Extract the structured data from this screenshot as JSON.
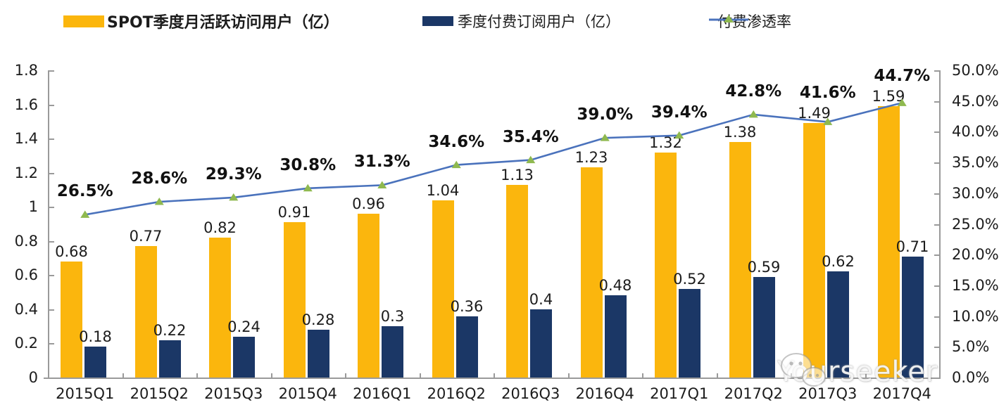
{
  "legend": {
    "mau_label": "SPOT季度月活跃访问用户（亿）",
    "subs_label": "季度付费订阅用户（亿）",
    "penetration_label": "付费渗透率"
  },
  "watermark": {
    "text": "Yourseeker",
    "icon": "wechat-icon"
  },
  "colors": {
    "mau_bar": "#FBB60D",
    "subs_bar": "#1B3766",
    "line": "#4A72BC",
    "marker": "#8FB94F",
    "axis": "#9A9A9A",
    "text": "#1C1C1C"
  },
  "chart_data": {
    "type": "bar",
    "subtype": "grouped bars + line on secondary axis",
    "categories": [
      "2015Q1",
      "2015Q2",
      "2015Q3",
      "2015Q4",
      "2016Q1",
      "2016Q2",
      "2016Q3",
      "2016Q4",
      "2017Q1",
      "2017Q2",
      "2017Q3",
      "2017Q4"
    ],
    "series": [
      {
        "name": "SPOT季度月活跃访问用户（亿）",
        "type": "bar",
        "axis": "left",
        "values": [
          0.68,
          0.77,
          0.82,
          0.91,
          0.96,
          1.04,
          1.13,
          1.23,
          1.32,
          1.38,
          1.49,
          1.59
        ],
        "labels": [
          "0.68",
          "0.77",
          "0.82",
          "0.91",
          "0.96",
          "1.04",
          "1.13",
          "1.23",
          "1.32",
          "1.38",
          "1.49",
          "1.59"
        ]
      },
      {
        "name": "季度付费订阅用户（亿）",
        "type": "bar",
        "axis": "left",
        "values": [
          0.18,
          0.22,
          0.24,
          0.28,
          0.3,
          0.36,
          0.4,
          0.48,
          0.52,
          0.59,
          0.62,
          0.71
        ],
        "labels": [
          "0.18",
          "0.22",
          "0.24",
          "0.28",
          "0.3",
          "0.36",
          "0.4",
          "0.48",
          "0.52",
          "0.59",
          "0.62",
          "0.71"
        ]
      },
      {
        "name": "付费渗透率",
        "type": "line",
        "axis": "right",
        "values": [
          26.5,
          28.6,
          29.3,
          30.8,
          31.3,
          34.6,
          35.4,
          39.0,
          39.4,
          42.8,
          41.6,
          44.7
        ],
        "labels": [
          "26.5%",
          "28.6%",
          "29.3%",
          "30.8%",
          "31.3%",
          "34.6%",
          "35.4%",
          "39.0%",
          "39.4%",
          "42.8%",
          "41.6%",
          "44.7%"
        ]
      }
    ],
    "left_axis": {
      "min": 0,
      "max": 1.8,
      "step": 0.2,
      "ticks": [
        "1.8",
        "1.6",
        "1.4",
        "1.2",
        "1",
        "0.8",
        "0.6",
        "0.4",
        "0.2",
        "0"
      ]
    },
    "right_axis": {
      "min": 0,
      "max": 50,
      "step": 5,
      "ticks": [
        "50.0%",
        "45.0%",
        "40.0%",
        "35.0%",
        "30.0%",
        "25.0%",
        "20.0%",
        "15.0%",
        "10.0%",
        "5.0%",
        "0.0%"
      ]
    },
    "grid": false,
    "legend_position": "top"
  }
}
